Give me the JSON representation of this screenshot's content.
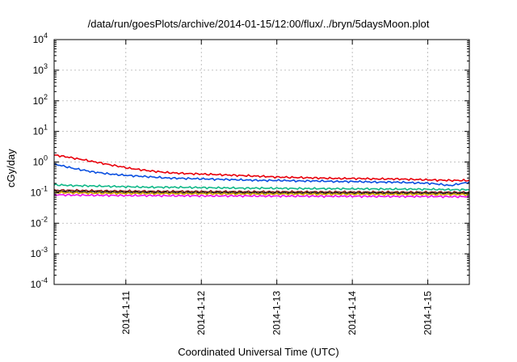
{
  "chart_data": {
    "type": "line",
    "title": "/data/run/goesPlots/archive/2014-01-15/12:00/flux/../bryn/5daysMoon.plot",
    "xlabel": "Coordinated Universal Time (UTC)",
    "ylabel": "cGy/day",
    "yscale": "log",
    "ylim": [
      0.0001,
      10000
    ],
    "xlim": [
      10.05,
      15.55
    ],
    "x_ticks": [
      {
        "value": 11,
        "label": "2014-1-11"
      },
      {
        "value": 12,
        "label": "2014-1-12"
      },
      {
        "value": 13,
        "label": "2014-1-13"
      },
      {
        "value": 14,
        "label": "2014-1-14"
      },
      {
        "value": 15,
        "label": "2014-1-15"
      }
    ],
    "y_ticks": [
      {
        "value": 0.0001,
        "base": "10",
        "exp": "-4"
      },
      {
        "value": 0.001,
        "base": "10",
        "exp": "-3"
      },
      {
        "value": 0.01,
        "base": "10",
        "exp": "-2"
      },
      {
        "value": 0.1,
        "base": "10",
        "exp": "-1"
      },
      {
        "value": 1,
        "base": "10",
        "exp": "0"
      },
      {
        "value": 10,
        "base": "10",
        "exp": "1"
      },
      {
        "value": 100,
        "base": "10",
        "exp": "2"
      },
      {
        "value": 1000,
        "base": "10",
        "exp": "3"
      },
      {
        "value": 10000,
        "base": "10",
        "exp": "4"
      }
    ],
    "grid": true,
    "x": [
      10.05,
      10.3,
      10.55,
      10.8,
      11.05,
      11.3,
      11.55,
      11.8,
      12.05,
      12.3,
      12.55,
      12.8,
      13.05,
      13.3,
      13.55,
      13.8,
      14.05,
      14.3,
      14.55,
      14.8,
      15.05,
      15.3,
      15.55
    ],
    "series": [
      {
        "color": "#e8000b",
        "values": [
          1.7,
          1.35,
          1.05,
          0.8,
          0.62,
          0.52,
          0.45,
          0.42,
          0.4,
          0.38,
          0.36,
          0.34,
          0.32,
          0.31,
          0.3,
          0.29,
          0.29,
          0.28,
          0.28,
          0.27,
          0.26,
          0.25,
          0.25
        ]
      },
      {
        "color": "#0a4fe0",
        "values": [
          0.85,
          0.62,
          0.48,
          0.4,
          0.36,
          0.33,
          0.3,
          0.29,
          0.28,
          0.27,
          0.26,
          0.25,
          0.25,
          0.24,
          0.24,
          0.23,
          0.23,
          0.22,
          0.22,
          0.21,
          0.2,
          0.17,
          0.22
        ]
      },
      {
        "color": "#10b888",
        "values": [
          0.18,
          0.17,
          0.165,
          0.16,
          0.155,
          0.15,
          0.15,
          0.148,
          0.145,
          0.143,
          0.14,
          0.14,
          0.138,
          0.136,
          0.135,
          0.134,
          0.133,
          0.132,
          0.13,
          0.13,
          0.128,
          0.125,
          0.125
        ]
      },
      {
        "color": "#8b1a1a",
        "values": [
          0.12,
          0.118,
          0.115,
          0.113,
          0.112,
          0.11,
          0.11,
          0.109,
          0.108,
          0.108,
          0.107,
          0.107,
          0.106,
          0.106,
          0.105,
          0.105,
          0.104,
          0.104,
          0.104,
          0.103,
          0.103,
          0.102,
          0.102
        ]
      },
      {
        "color": "#222222",
        "values": [
          0.11,
          0.108,
          0.106,
          0.104,
          0.103,
          0.102,
          0.101,
          0.1,
          0.1,
          0.1,
          0.099,
          0.099,
          0.098,
          0.098,
          0.098,
          0.097,
          0.097,
          0.097,
          0.096,
          0.096,
          0.096,
          0.095,
          0.095
        ]
      },
      {
        "color": "#d4a300",
        "values": [
          0.1,
          0.098,
          0.096,
          0.095,
          0.094,
          0.093,
          0.093,
          0.092,
          0.092,
          0.091,
          0.091,
          0.09,
          0.09,
          0.09,
          0.089,
          0.089,
          0.089,
          0.088,
          0.088,
          0.088,
          0.087,
          0.087,
          0.087
        ]
      },
      {
        "color": "#ee10ee",
        "values": [
          0.085,
          0.083,
          0.082,
          0.081,
          0.08,
          0.08,
          0.079,
          0.079,
          0.078,
          0.078,
          0.078,
          0.077,
          0.077,
          0.077,
          0.076,
          0.076,
          0.076,
          0.075,
          0.075,
          0.075,
          0.075,
          0.074,
          0.074
        ]
      }
    ]
  }
}
